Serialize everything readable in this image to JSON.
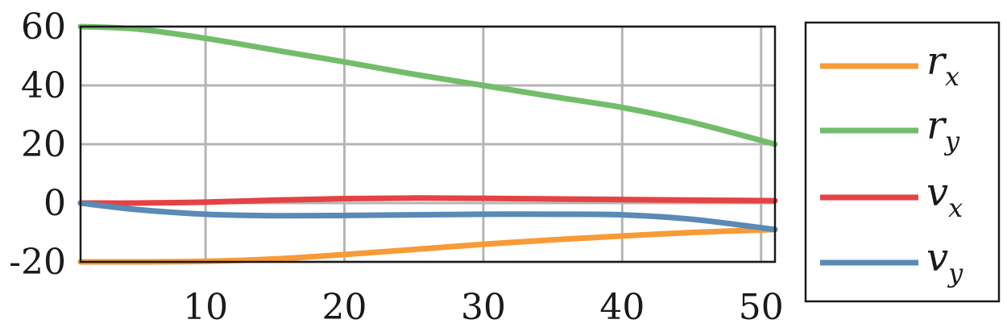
{
  "chart_data": {
    "type": "line",
    "xlim": [
      1,
      51
    ],
    "ylim": [
      -20,
      60
    ],
    "xticks": [
      "10",
      "20",
      "30",
      "40",
      "50"
    ],
    "xtick_values": [
      10,
      20,
      30,
      40,
      50
    ],
    "yticks": [
      "60",
      "40",
      "20",
      "0",
      "-20"
    ],
    "ytick_values": [
      60,
      40,
      20,
      0,
      -20
    ],
    "grid": true,
    "legend_position": "right-outside",
    "x": [
      1,
      5,
      10,
      15,
      20,
      25,
      30,
      35,
      40,
      45,
      51
    ],
    "series": [
      {
        "name": "r_x",
        "label_main": "r",
        "label_sub": "x",
        "color": "#f79b36",
        "values": [
          -20,
          -20,
          -19.8,
          -19,
          -17.5,
          -15.8,
          -14,
          -12.5,
          -11.2,
          -10,
          -9
        ]
      },
      {
        "name": "r_y",
        "label_main": "r",
        "label_sub": "y",
        "color": "#72bd6a",
        "values": [
          60,
          59.2,
          56,
          52,
          48,
          43.8,
          40,
          36.2,
          32.5,
          27.5,
          20
        ]
      },
      {
        "name": "v_x",
        "label_main": "v",
        "label_sub": "x",
        "color": "#e54245",
        "values": [
          0,
          0,
          0.3,
          1,
          1.5,
          1.7,
          1.6,
          1.4,
          1.2,
          1,
          0.8
        ]
      },
      {
        "name": "v_y",
        "label_main": "v",
        "label_sub": "y",
        "color": "#5a8ab5",
        "values": [
          0,
          -2.2,
          -3.8,
          -4.3,
          -4.2,
          -4,
          -3.8,
          -3.8,
          -4,
          -5.5,
          -9
        ]
      }
    ]
  }
}
